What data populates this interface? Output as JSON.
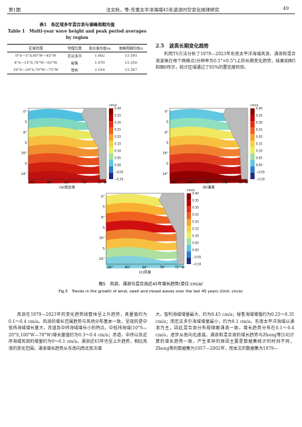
{
  "header": {
    "issue": "第1期",
    "running_title": "沈文秋，等:东南太平洋海域45年波浪时空变化规律研究",
    "page_number": "49"
  },
  "table": {
    "title": "表1　各区域多年混合浪与谱峰周期均值",
    "title_en": "Table 1　Multi-year wave height and peak period averages by region",
    "headers": [
      "区域范围",
      "地理位置",
      "混合浪均值/m",
      "谱峰周期均值/s"
    ],
    "rows": [
      [
        "0°S—5°S,80°W—85°W",
        "厄瓜多尔",
        "1.662",
        "13.593"
      ],
      [
        "8°S—15°S,76°W—83°W",
        "秘鲁",
        "1.870",
        "13.350"
      ],
      [
        "18°S—24°S,70°W—75°W",
        "智利",
        "2.016",
        "13.367"
      ]
    ]
  },
  "section": {
    "heading": "2.5　波高长期变化趋势",
    "paragraph": "利用TS方法分析了1979—2023年东南太平洋海域风浪、涌浪和混合浪波高在每个网格点(分辨率为0.5°×0.5°)上的长期变化趋势，结果如图5和图6所示，统计区域通过了95%的置信度检验。"
  },
  "figure": {
    "unit": "cm/a",
    "colorbar_ticks": [
      "0.40",
      "0.35",
      "0.30",
      "0.25",
      "0.20",
      "0.15",
      "0.10",
      "0.05",
      "0.00",
      "−0.05",
      "−0.10"
    ],
    "lat_labels": [
      "0°",
      "8°",
      "16°",
      "24°"
    ],
    "lat_hemisphere": "S",
    "lon_labels": [
      "96°",
      "90°",
      "84°",
      "78°",
      "72° W"
    ],
    "panels": [
      "(a)混合浪",
      "(b)涌浪",
      "(c)风浪"
    ],
    "caption": "图5　风浪、涌浪与混合浪近45年增长趋势(单位:cm/a)",
    "caption_en": "Fig.5　Trends in the growth of wind, swell and mixed waves over the last 45 years (Unit: cm/a)"
  },
  "body": {
    "left": "风浪在1979—2023年的变化趋势线整体呈上升趋势，其量值约为0.1～0.4 cm/a。风浪的增长范围趋势与风场分布基本一致，呈现的是中低纬海域增长量大，赤道及中纬海域增长小的特点。中低纬海域(10°S—20°S,100°W—78°W)增长量值约为0.3～0.4 cm/a；赤道、中纬以及近岸海域风浪的增量约为0～0.1 cm/a。涌浪近45年也呈上升趋势，相比风浪的变化范围，涌浪增长趋势从东南向西北依次增",
    "right": "大，智利海域增量最大，约为0.45 cm/a；秘鲁海域增值约为0.25～0.35 cm/a；而厄瓜多尔海域增量最小，约为0.1 cm/a。东南太平洋海域以涌浪为主，因此混合浪分布规律跟涌浪一致。增长趋势分布在0.1～0.4 cm/a，逐步从南向北递减。涌浪和混合浪的增长趋势与Zheng等[16]计算的增长趋势一致，产生差异的原因主要是数据集统计的时间不同，Zheng等的数据集为1957—2002年，而本文的数据集为1979—"
  }
}
